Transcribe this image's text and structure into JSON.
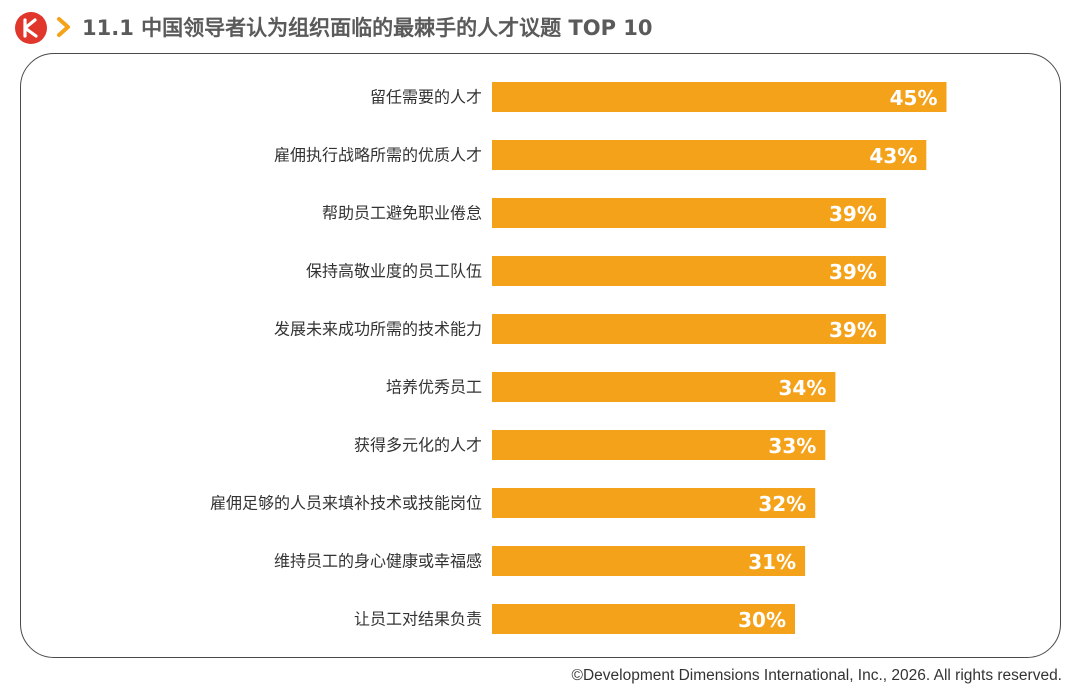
{
  "header": {
    "title": "11.1 中国领导者认为组织面临的最棘手的人才议题 TOP 10"
  },
  "colors": {
    "bar": "#f5a21b",
    "brand": "#e0362c",
    "chevron": "#f5a21b",
    "label_text": "#333333",
    "value_text": "#ffffff"
  },
  "chart_data": {
    "type": "bar",
    "orientation": "horizontal",
    "categories": [
      "留任需要的人才",
      "雇佣执行战略所需的优质人才",
      "帮助员工避免职业倦怠",
      "保持高敬业度的员工队伍",
      "发展未来成功所需的技术能力",
      "培养优秀员工",
      "获得多元化的人才",
      "雇佣足够的人员来填补技术或技能岗位",
      "维持员工的身心健康或幸福感",
      "让员工对结果负责"
    ],
    "values": [
      45,
      43,
      39,
      39,
      39,
      34,
      33,
      32,
      31,
      30
    ],
    "value_labels": [
      "45%",
      "43%",
      "39%",
      "39%",
      "39%",
      "34%",
      "33%",
      "32%",
      "31%",
      "30%"
    ],
    "unit": "%",
    "grid": false,
    "legend": "none"
  },
  "footer": {
    "copyright": "©Development Dimensions International, Inc., 2026. All rights reserved."
  }
}
